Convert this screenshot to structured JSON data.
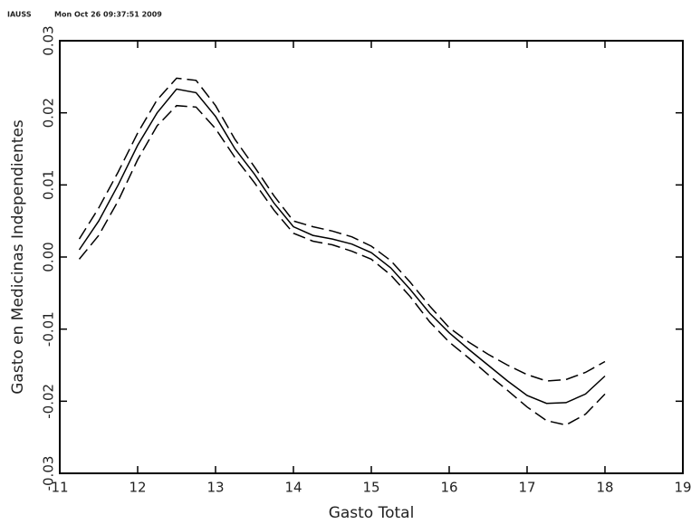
{
  "chart_data": {
    "type": "line",
    "annotations": [
      "IAUSS",
      "Mon Oct 26 09:37:51 2009"
    ],
    "xlabel": "Gasto Total",
    "ylabel": "Gasto en Medicinas Independientes",
    "x": [
      11.25,
      11.5,
      11.75,
      12.0,
      12.25,
      12.5,
      12.75,
      13.0,
      13.25,
      13.5,
      13.75,
      14.0,
      14.25,
      14.5,
      14.75,
      15.0,
      15.25,
      15.5,
      15.75,
      16.0,
      16.25,
      16.5,
      16.75,
      17.0,
      17.25,
      17.5,
      17.75,
      18.0
    ],
    "series": [
      {
        "color": "#000000",
        "dashed": false,
        "values": [
          0.001,
          0.005,
          0.01,
          0.0155,
          0.02,
          0.0233,
          0.0228,
          0.0195,
          0.015,
          0.0115,
          0.0075,
          0.0042,
          0.003,
          0.0025,
          0.0018,
          0.0006,
          -0.0015,
          -0.0045,
          -0.0078,
          -0.0105,
          -0.0128,
          -0.015,
          -0.0172,
          -0.0192,
          -0.0203,
          -0.0202,
          -0.019,
          -0.0165
        ]
      },
      {
        "color": "#000000",
        "dashed": true,
        "values": [
          0.0025,
          0.0068,
          0.0118,
          0.0172,
          0.0218,
          0.0248,
          0.0245,
          0.021,
          0.0163,
          0.0125,
          0.0085,
          0.005,
          0.0042,
          0.0036,
          0.0028,
          0.0015,
          -0.0005,
          -0.0035,
          -0.0068,
          -0.0098,
          -0.0118,
          -0.0135,
          -0.015,
          -0.0163,
          -0.0172,
          -0.017,
          -0.016,
          -0.0145
        ]
      },
      {
        "color": "#000000",
        "dashed": true,
        "values": [
          -0.0003,
          0.003,
          0.0078,
          0.0135,
          0.0182,
          0.021,
          0.0208,
          0.0178,
          0.0138,
          0.0103,
          0.0065,
          0.0033,
          0.0022,
          0.0017,
          0.0008,
          -0.0003,
          -0.0025,
          -0.0055,
          -0.009,
          -0.0118,
          -0.014,
          -0.0163,
          -0.0185,
          -0.0208,
          -0.0227,
          -0.0233,
          -0.0218,
          -0.019
        ]
      }
    ],
    "xlim": [
      11,
      19
    ],
    "xticks": [
      11,
      12,
      13,
      14,
      15,
      16,
      17,
      18,
      19
    ],
    "ylim": [
      -0.03,
      0.03
    ],
    "yticks": [
      -0.03,
      -0.02,
      -0.01,
      {
        "value": 0,
        "label": "0.00"
      },
      0.01,
      0.02,
      0.03
    ],
    "grid": false
  }
}
